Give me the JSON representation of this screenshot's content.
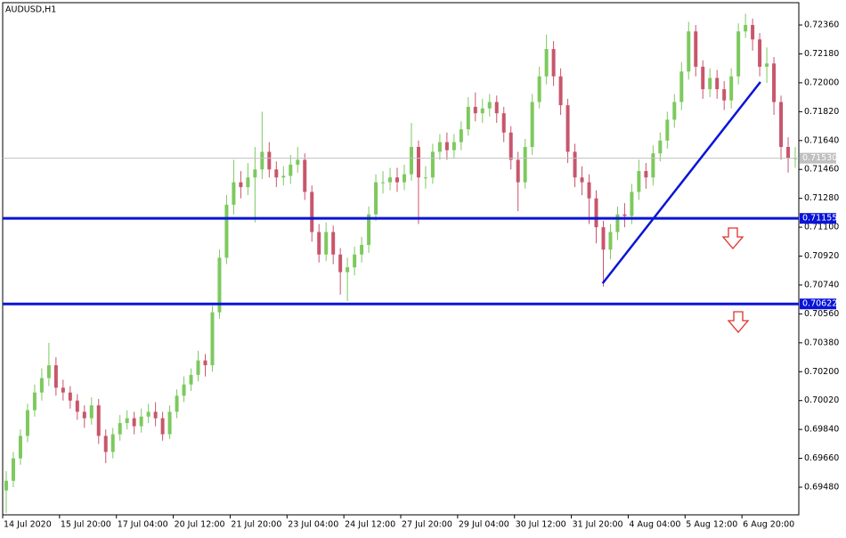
{
  "chart_data": {
    "type": "candlestick",
    "title": "AUDUSD,H1",
    "up_color": "#7dc95e",
    "down_color": "#c8566c",
    "open": [
      0.6946,
      0.6952,
      0.6966,
      0.698,
      0.6996,
      0.7007,
      0.7016,
      0.7024,
      0.701,
      0.7007,
      0.7002,
      0.6995,
      0.6991,
      0.6999,
      0.698,
      0.697,
      0.6981,
      0.6988,
      0.6991,
      0.6986,
      0.6992,
      0.6995,
      0.6991,
      0.6981,
      0.6995,
      0.7005,
      0.7012,
      0.7018,
      0.7027,
      0.7024,
      0.7057,
      0.7091,
      0.7124,
      0.7138,
      0.7135,
      0.7141,
      0.7146,
      0.7157,
      0.7146,
      0.7141,
      0.7142,
      0.7149,
      0.7152,
      0.7132,
      0.7107,
      0.7093,
      0.7107,
      0.7093,
      0.7082,
      0.7085,
      0.7093,
      0.7099,
      0.7118,
      0.7138,
      0.7138,
      0.7141,
      0.7138,
      0.7143,
      0.716,
      0.7141,
      0.7141,
      0.7157,
      0.7163,
      0.7158,
      0.7163,
      0.7171,
      0.7185,
      0.7181,
      0.7184,
      0.7188,
      0.7181,
      0.7169,
      0.7152,
      0.7138,
      0.716,
      0.7188,
      0.7204,
      0.7221,
      0.7204,
      0.7186,
      0.7157,
      0.7141,
      0.7138,
      0.7128,
      0.711,
      0.7096,
      0.7107,
      0.7118,
      0.7117,
      0.7132,
      0.7145,
      0.7141,
      0.7156,
      0.7164,
      0.7177,
      0.7188,
      0.7207,
      0.7232,
      0.721,
      0.7196,
      0.7203,
      0.7196,
      0.7189,
      0.7204,
      0.7232,
      0.7236,
      0.7227,
      0.721,
      0.7212,
      0.7188,
      0.716,
      0.7153
    ],
    "high": [
      0.6958,
      0.697,
      0.6984,
      0.7,
      0.7012,
      0.7022,
      0.7038,
      0.7029,
      0.7015,
      0.7011,
      0.7006,
      0.6999,
      0.7004,
      0.7003,
      0.6984,
      0.6985,
      0.6993,
      0.6996,
      0.6995,
      0.6997,
      0.7,
      0.7001,
      0.6995,
      0.6999,
      0.7009,
      0.7017,
      0.7022,
      0.7033,
      0.7031,
      0.7061,
      0.7096,
      0.713,
      0.7152,
      0.7145,
      0.715,
      0.716,
      0.7182,
      0.7163,
      0.7151,
      0.7148,
      0.7155,
      0.716,
      0.7156,
      0.7136,
      0.7112,
      0.7113,
      0.7111,
      0.7097,
      0.7091,
      0.7098,
      0.7104,
      0.7123,
      0.7143,
      0.7145,
      0.7147,
      0.7147,
      0.7149,
      0.7175,
      0.7164,
      0.7148,
      0.7162,
      0.7168,
      0.7169,
      0.7168,
      0.7176,
      0.7191,
      0.7194,
      0.719,
      0.7193,
      0.7192,
      0.7185,
      0.7173,
      0.7157,
      0.7165,
      0.7193,
      0.721,
      0.723,
      0.7226,
      0.7209,
      0.719,
      0.7162,
      0.7148,
      0.7143,
      0.7133,
      0.7114,
      0.7112,
      0.7123,
      0.7125,
      0.7137,
      0.7152,
      0.715,
      0.7161,
      0.7169,
      0.7182,
      0.7193,
      0.7213,
      0.7238,
      0.7236,
      0.7214,
      0.7209,
      0.7208,
      0.7201,
      0.7209,
      0.7237,
      0.7243,
      0.724,
      0.7231,
      0.7222,
      0.7216,
      0.7192,
      0.7166,
      0.716
    ],
    "low": [
      0.6932,
      0.6948,
      0.6962,
      0.6976,
      0.6992,
      0.7002,
      0.7011,
      0.7005,
      0.7002,
      0.6997,
      0.699,
      0.6985,
      0.6987,
      0.6975,
      0.6963,
      0.6966,
      0.6977,
      0.6984,
      0.6981,
      0.6982,
      0.6988,
      0.6986,
      0.6977,
      0.6978,
      0.6991,
      0.7001,
      0.7008,
      0.7014,
      0.7017,
      0.702,
      0.7053,
      0.7087,
      0.7118,
      0.7128,
      0.713,
      0.7113,
      0.714,
      0.7141,
      0.7135,
      0.7136,
      0.7137,
      0.7144,
      0.7127,
      0.7101,
      0.7088,
      0.7089,
      0.7087,
      0.7068,
      0.7064,
      0.708,
      0.7088,
      0.7094,
      0.7114,
      0.7131,
      0.7133,
      0.7132,
      0.7133,
      0.7139,
      0.7112,
      0.7134,
      0.7137,
      0.7152,
      0.7152,
      0.7153,
      0.7158,
      0.7167,
      0.7176,
      0.7175,
      0.7179,
      0.7175,
      0.7163,
      0.7146,
      0.712,
      0.7134,
      0.7155,
      0.7184,
      0.7199,
      0.7198,
      0.718,
      0.715,
      0.7135,
      0.713,
      0.7112,
      0.71,
      0.7073,
      0.709,
      0.7102,
      0.711,
      0.7112,
      0.7127,
      0.7134,
      0.7136,
      0.7151,
      0.7159,
      0.7172,
      0.7183,
      0.7202,
      0.7204,
      0.719,
      0.7191,
      0.719,
      0.7183,
      0.7184,
      0.7199,
      0.7228,
      0.722,
      0.7204,
      0.72,
      0.718,
      0.7152,
      0.7144,
      0.7147
    ],
    "close": [
      0.6952,
      0.6966,
      0.698,
      0.6996,
      0.7007,
      0.7016,
      0.7024,
      0.701,
      0.7007,
      0.7002,
      0.6995,
      0.6991,
      0.6999,
      0.698,
      0.697,
      0.6981,
      0.6988,
      0.6991,
      0.6986,
      0.6992,
      0.6995,
      0.6991,
      0.6981,
      0.6995,
      0.7005,
      0.7012,
      0.7018,
      0.7027,
      0.7024,
      0.7057,
      0.7091,
      0.7124,
      0.7138,
      0.7135,
      0.7141,
      0.7146,
      0.7157,
      0.7146,
      0.7141,
      0.7142,
      0.7149,
      0.7152,
      0.7132,
      0.7107,
      0.7093,
      0.7107,
      0.7093,
      0.7082,
      0.7085,
      0.7093,
      0.7099,
      0.7118,
      0.7138,
      0.7138,
      0.7141,
      0.7138,
      0.7143,
      0.716,
      0.7141,
      0.7141,
      0.7157,
      0.7163,
      0.7158,
      0.7163,
      0.7171,
      0.7185,
      0.7181,
      0.7184,
      0.7188,
      0.7181,
      0.7169,
      0.7152,
      0.7138,
      0.716,
      0.7188,
      0.7204,
      0.7221,
      0.7204,
      0.7186,
      0.7157,
      0.7141,
      0.7138,
      0.7128,
      0.711,
      0.7096,
      0.7107,
      0.7118,
      0.7117,
      0.7132,
      0.7145,
      0.7141,
      0.7156,
      0.7164,
      0.7177,
      0.7188,
      0.7207,
      0.7232,
      0.721,
      0.7196,
      0.7203,
      0.7196,
      0.7189,
      0.7204,
      0.7232,
      0.7236,
      0.7227,
      0.721,
      0.7212,
      0.7188,
      0.716,
      0.7153,
      0.7153
    ],
    "xlim": [
      0,
      112
    ],
    "xticks": [
      {
        "value": 0,
        "label": "14 Jul 2020"
      },
      {
        "value": 8,
        "label": "15 Jul 20:00"
      },
      {
        "value": 16,
        "label": "17 Jul 04:00"
      },
      {
        "value": 24,
        "label": "20 Jul 12:00"
      },
      {
        "value": 32,
        "label": "21 Jul 20:00"
      },
      {
        "value": 40,
        "label": "23 Jul 04:00"
      },
      {
        "value": 48,
        "label": "24 Jul 12:00"
      },
      {
        "value": 56,
        "label": "27 Jul 20:00"
      },
      {
        "value": 64,
        "label": "29 Jul 04:00"
      },
      {
        "value": 72,
        "label": "30 Jul 12:00"
      },
      {
        "value": 80,
        "label": "31 Jul 20:00"
      },
      {
        "value": 88,
        "label": "4 Aug 04:00"
      },
      {
        "value": 96,
        "label": "5 Aug 12:00"
      },
      {
        "value": 104,
        "label": "6 Aug 20:00"
      }
    ],
    "ylim": [
      0.69308,
      0.72499
    ],
    "yticks": [
      {
        "value": 0.7236,
        "label": "0.72360"
      },
      {
        "value": 0.7218,
        "label": "0.72180"
      },
      {
        "value": 0.72,
        "label": "0.72000"
      },
      {
        "value": 0.7182,
        "label": "0.71820"
      },
      {
        "value": 0.7164,
        "label": "0.71640"
      },
      {
        "value": 0.7146,
        "label": "0.71460"
      },
      {
        "value": 0.7128,
        "label": "0.71280"
      },
      {
        "value": 0.711,
        "label": "0.71100"
      },
      {
        "value": 0.7092,
        "label": "0.70920"
      },
      {
        "value": 0.7074,
        "label": "0.70740"
      },
      {
        "value": 0.7056,
        "label": "0.70560"
      },
      {
        "value": 0.7038,
        "label": "0.70380"
      },
      {
        "value": 0.702,
        "label": "0.70200"
      },
      {
        "value": 0.7002,
        "label": "0.70020"
      },
      {
        "value": 0.6984,
        "label": "0.69840"
      },
      {
        "value": 0.6966,
        "label": "0.69660"
      },
      {
        "value": 0.6948,
        "label": "0.69480"
      }
    ],
    "hlines": [
      {
        "value": 0.7153,
        "label": "0.71530",
        "color": "#c0c0c0"
      },
      {
        "value": 0.71155,
        "label": "0.71155",
        "color": "#0a14d8"
      },
      {
        "value": 0.70622,
        "label": "0.70622",
        "color": "#0a14d8"
      }
    ],
    "trendline": {
      "x": [
        84.4,
        106.6
      ],
      "y": [
        0.7075,
        0.72005
      ],
      "color": "#0a14d8"
    }
  }
}
